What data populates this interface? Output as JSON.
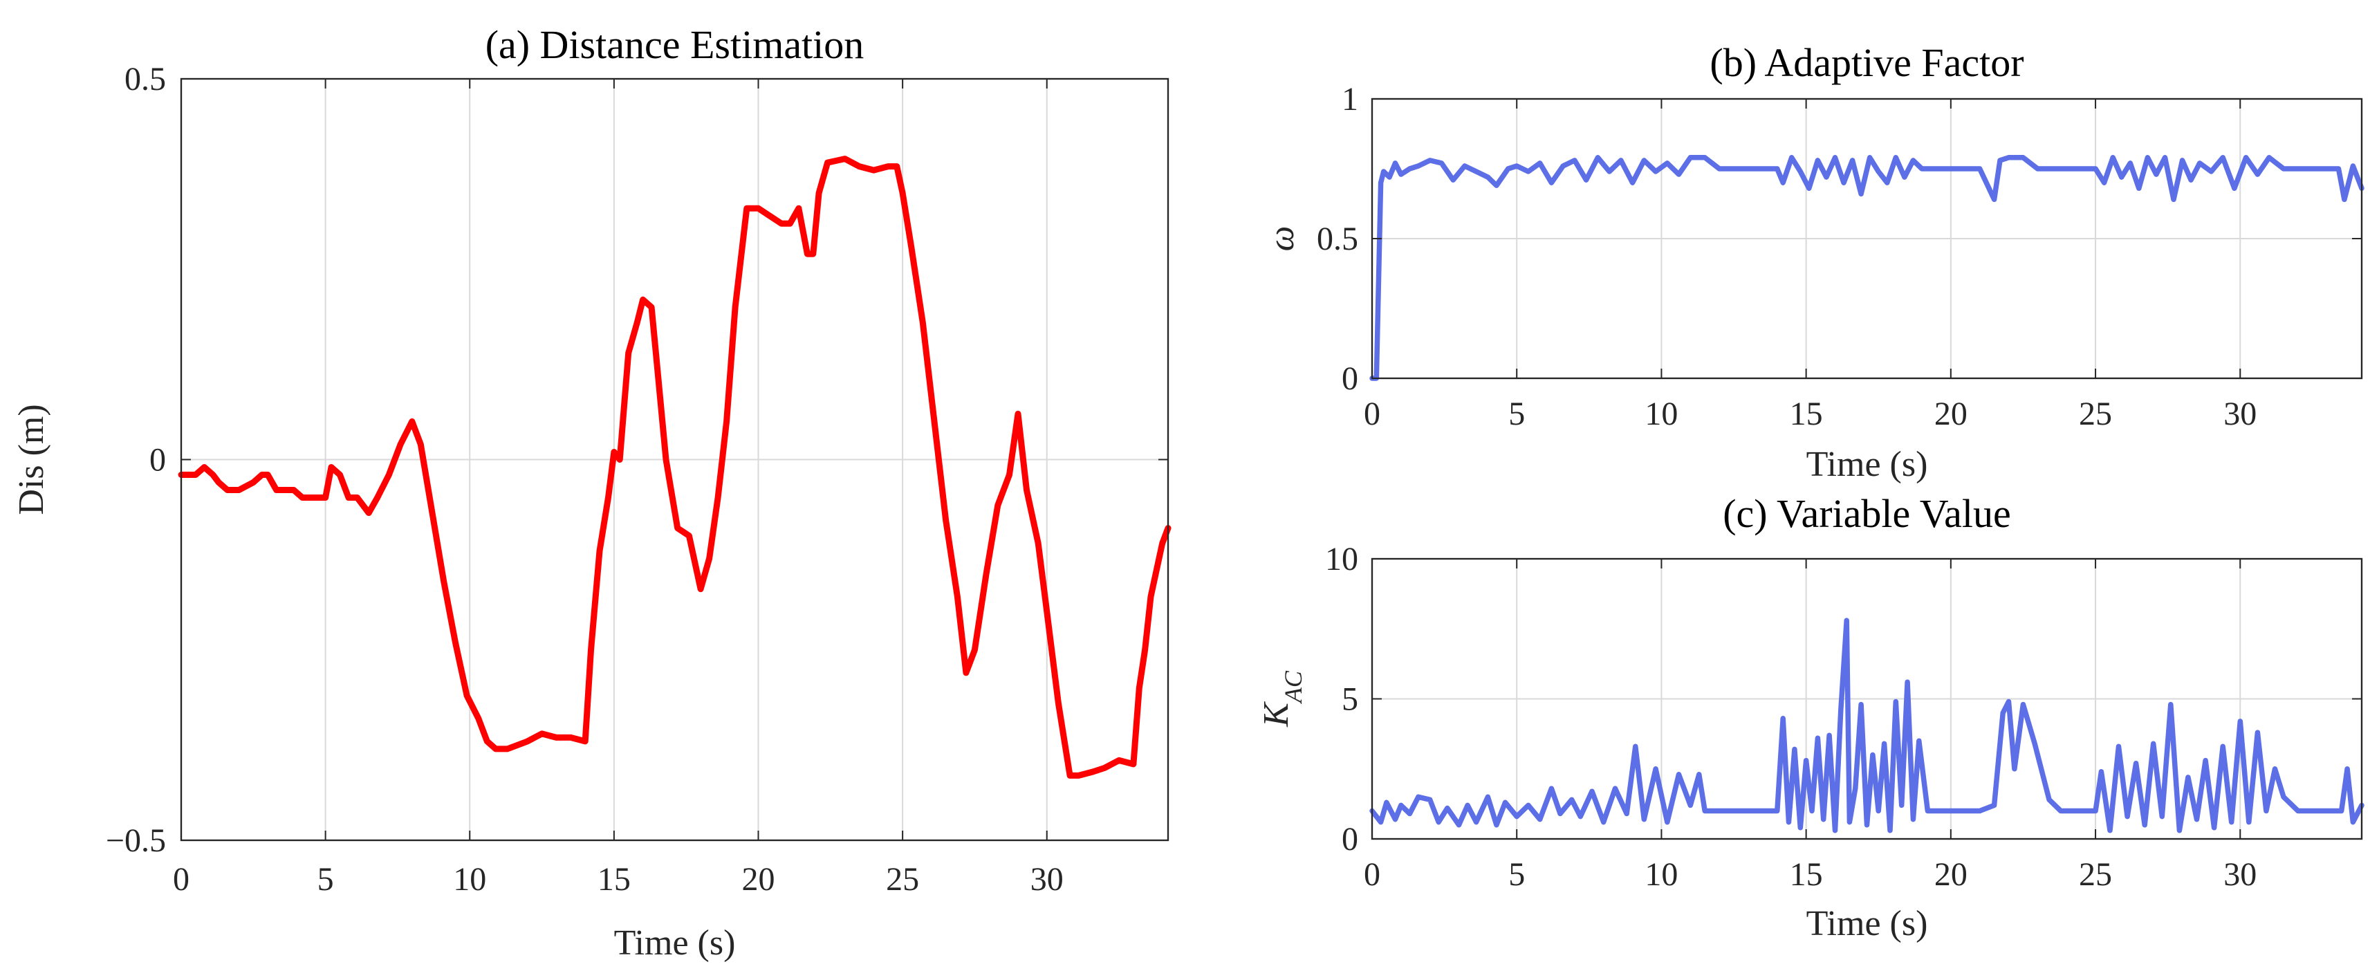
{
  "chart_data": [
    {
      "id": "a",
      "type": "line",
      "title": "(a) Distance Estimation",
      "xlabel": "Time (s)",
      "ylabel": "Dis (m)",
      "xlim": [
        0,
        34.2
      ],
      "ylim": [
        -0.5,
        0.5
      ],
      "xticks": [
        0,
        5,
        10,
        15,
        20,
        25,
        30
      ],
      "xtick_labels": [
        "0",
        "5",
        "10",
        "15",
        "20",
        "25",
        "30"
      ],
      "yticks": [
        -0.5,
        0,
        0.5
      ],
      "ytick_labels": [
        "−0.5",
        "0",
        "0.5"
      ],
      "grid": true,
      "series": [
        {
          "name": "Distance",
          "color": "#ff0000",
          "x": [
            0,
            0.5,
            0.8,
            1.1,
            1.3,
            1.6,
            2.0,
            2.5,
            2.8,
            3.0,
            3.3,
            3.6,
            3.9,
            4.2,
            4.6,
            5.0,
            5.2,
            5.5,
            5.8,
            6.1,
            6.5,
            6.8,
            7.2,
            7.6,
            8.0,
            8.3,
            8.7,
            9.1,
            9.5,
            9.9,
            10.3,
            10.6,
            10.9,
            11.3,
            12.0,
            12.5,
            13.0,
            13.5,
            14.0,
            14.2,
            14.5,
            14.8,
            15.0,
            15.2,
            15.5,
            15.8,
            16.0,
            16.3,
            16.5,
            16.8,
            17.2,
            17.6,
            18.0,
            18.3,
            18.6,
            18.9,
            19.2,
            19.6,
            20.0,
            20.4,
            20.8,
            21.1,
            21.4,
            21.7,
            21.9,
            22.1,
            22.4,
            23.0,
            23.5,
            24.0,
            24.5,
            24.8,
            25.0,
            25.3,
            25.7,
            26.1,
            26.5,
            26.9,
            27.2,
            27.5,
            27.9,
            28.3,
            28.7,
            29.0,
            29.3,
            29.7,
            30.0,
            30.4,
            30.8,
            31.1,
            31.6,
            32.0,
            32.5,
            33.0,
            33.2,
            33.4,
            33.6,
            34.0,
            34.2
          ],
          "y": [
            -0.02,
            -0.02,
            -0.01,
            -0.02,
            -0.03,
            -0.04,
            -0.04,
            -0.03,
            -0.02,
            -0.02,
            -0.04,
            -0.04,
            -0.04,
            -0.05,
            -0.05,
            -0.05,
            -0.01,
            -0.02,
            -0.05,
            -0.05,
            -0.07,
            -0.05,
            -0.02,
            0.02,
            0.05,
            0.02,
            -0.07,
            -0.16,
            -0.24,
            -0.31,
            -0.34,
            -0.37,
            -0.38,
            -0.38,
            -0.37,
            -0.36,
            -0.365,
            -0.365,
            -0.37,
            -0.25,
            -0.12,
            -0.05,
            0.01,
            0.0,
            0.14,
            0.18,
            0.21,
            0.2,
            0.12,
            0.0,
            -0.09,
            -0.1,
            -0.17,
            -0.13,
            -0.05,
            0.05,
            0.2,
            0.33,
            0.33,
            0.32,
            0.31,
            0.31,
            0.33,
            0.27,
            0.27,
            0.35,
            0.39,
            0.395,
            0.385,
            0.38,
            0.385,
            0.385,
            0.35,
            0.28,
            0.18,
            0.05,
            -0.08,
            -0.18,
            -0.28,
            -0.25,
            -0.15,
            -0.06,
            -0.02,
            0.06,
            -0.04,
            -0.11,
            -0.2,
            -0.32,
            -0.415,
            -0.415,
            -0.41,
            -0.405,
            -0.395,
            -0.4,
            -0.3,
            -0.25,
            -0.18,
            -0.11,
            -0.09
          ]
        }
      ]
    },
    {
      "id": "b",
      "type": "line",
      "title": "(b) Adaptive Factor",
      "xlabel": "Time (s)",
      "ylabel": "ω",
      "xlim": [
        0,
        34.2
      ],
      "ylim": [
        0,
        1
      ],
      "xticks": [
        0,
        5,
        10,
        15,
        20,
        25,
        30
      ],
      "xtick_labels": [
        "0",
        "5",
        "10",
        "15",
        "20",
        "25",
        "30"
      ],
      "yticks": [
        0,
        0.5,
        1
      ],
      "ytick_labels": [
        "0",
        "0.5",
        "1"
      ],
      "grid": true,
      "series": [
        {
          "name": "Adaptive factor",
          "color": "#5c6fe6",
          "x": [
            0,
            0.15,
            0.3,
            0.4,
            0.6,
            0.8,
            1.0,
            1.3,
            1.6,
            2.0,
            2.4,
            2.8,
            3.2,
            3.6,
            4.0,
            4.3,
            4.7,
            5.0,
            5.4,
            5.8,
            6.2,
            6.6,
            7.0,
            7.4,
            7.8,
            8.2,
            8.6,
            9.0,
            9.4,
            9.8,
            10.2,
            10.6,
            11.0,
            11.5,
            12.0,
            13.0,
            14.0,
            14.2,
            14.5,
            14.8,
            15.1,
            15.4,
            15.7,
            16.0,
            16.3,
            16.6,
            16.9,
            17.2,
            17.5,
            17.8,
            18.1,
            18.4,
            18.7,
            19.0,
            19.3,
            20.0,
            21.0,
            21.5,
            21.7,
            22.0,
            22.5,
            23.0,
            24.0,
            25.0,
            25.3,
            25.6,
            25.9,
            26.2,
            26.5,
            26.8,
            27.1,
            27.4,
            27.7,
            28.0,
            28.3,
            28.6,
            29.0,
            29.4,
            29.8,
            30.2,
            30.6,
            31.0,
            31.5,
            32.0,
            33.0,
            33.4,
            33.6,
            33.9,
            34.2
          ],
          "y": [
            0.0,
            0.0,
            0.7,
            0.74,
            0.72,
            0.77,
            0.73,
            0.75,
            0.76,
            0.78,
            0.77,
            0.71,
            0.76,
            0.74,
            0.72,
            0.69,
            0.75,
            0.76,
            0.74,
            0.77,
            0.7,
            0.76,
            0.78,
            0.71,
            0.79,
            0.74,
            0.78,
            0.7,
            0.78,
            0.74,
            0.77,
            0.73,
            0.79,
            0.79,
            0.75,
            0.75,
            0.75,
            0.7,
            0.79,
            0.74,
            0.68,
            0.78,
            0.72,
            0.79,
            0.7,
            0.78,
            0.66,
            0.79,
            0.74,
            0.7,
            0.79,
            0.72,
            0.78,
            0.75,
            0.75,
            0.75,
            0.75,
            0.64,
            0.78,
            0.79,
            0.79,
            0.75,
            0.75,
            0.75,
            0.7,
            0.79,
            0.72,
            0.77,
            0.68,
            0.79,
            0.73,
            0.79,
            0.64,
            0.78,
            0.71,
            0.77,
            0.74,
            0.79,
            0.68,
            0.79,
            0.73,
            0.79,
            0.75,
            0.75,
            0.75,
            0.75,
            0.64,
            0.76,
            0.68
          ]
        }
      ]
    },
    {
      "id": "c",
      "type": "line",
      "title": "(c) Variable Value",
      "xlabel": "Time (s)",
      "ylabel": "K",
      "ylabel_subscript": "AC",
      "xlim": [
        0,
        34.2
      ],
      "ylim": [
        0,
        10
      ],
      "xticks": [
        0,
        5,
        10,
        15,
        20,
        25,
        30
      ],
      "xtick_labels": [
        "0",
        "5",
        "10",
        "15",
        "20",
        "25",
        "30"
      ],
      "yticks": [
        0,
        5,
        10
      ],
      "ytick_labels": [
        "0",
        "5",
        "10"
      ],
      "grid": true,
      "series": [
        {
          "name": "Variable value",
          "color": "#5c6fe6",
          "x": [
            0,
            0.3,
            0.5,
            0.8,
            1.0,
            1.3,
            1.6,
            2.0,
            2.3,
            2.6,
            3.0,
            3.3,
            3.6,
            4.0,
            4.3,
            4.6,
            5.0,
            5.4,
            5.8,
            6.2,
            6.5,
            6.9,
            7.2,
            7.6,
            8.0,
            8.4,
            8.8,
            9.1,
            9.4,
            9.8,
            10.2,
            10.6,
            11.0,
            11.3,
            11.5,
            12.0,
            13.0,
            14.0,
            14.2,
            14.4,
            14.6,
            14.8,
            15.0,
            15.2,
            15.4,
            15.6,
            15.8,
            16.0,
            16.2,
            16.4,
            16.5,
            16.7,
            16.9,
            17.1,
            17.3,
            17.5,
            17.7,
            17.9,
            18.1,
            18.3,
            18.5,
            18.7,
            18.9,
            19.2,
            19.5,
            20.0,
            21.0,
            21.5,
            21.8,
            22.0,
            22.2,
            22.5,
            22.9,
            23.4,
            23.8,
            24.5,
            25.0,
            25.2,
            25.5,
            25.8,
            26.1,
            26.4,
            26.7,
            27.0,
            27.3,
            27.6,
            27.9,
            28.2,
            28.5,
            28.8,
            29.1,
            29.4,
            29.7,
            30.0,
            30.3,
            30.6,
            30.9,
            31.2,
            31.5,
            32.0,
            33.0,
            33.5,
            33.7,
            33.9,
            34.2
          ],
          "y": [
            1.0,
            0.6,
            1.3,
            0.7,
            1.2,
            0.9,
            1.5,
            1.4,
            0.6,
            1.1,
            0.5,
            1.2,
            0.6,
            1.5,
            0.5,
            1.3,
            0.8,
            1.2,
            0.7,
            1.8,
            0.9,
            1.4,
            0.8,
            1.7,
            0.6,
            1.8,
            0.9,
            3.3,
            0.7,
            2.5,
            0.6,
            2.3,
            1.2,
            2.3,
            1.0,
            1.0,
            1.0,
            1.0,
            4.3,
            0.6,
            3.2,
            0.4,
            2.8,
            1.0,
            3.6,
            0.7,
            3.7,
            0.3,
            4.6,
            7.8,
            0.6,
            1.8,
            4.8,
            0.5,
            3.0,
            1.0,
            3.4,
            0.3,
            4.9,
            1.2,
            5.6,
            0.7,
            3.5,
            1.0,
            1.0,
            1.0,
            1.0,
            1.2,
            4.5,
            4.9,
            2.5,
            4.8,
            3.4,
            1.4,
            1.0,
            1.0,
            1.0,
            2.4,
            0.3,
            3.3,
            0.8,
            2.7,
            0.5,
            3.4,
            0.8,
            4.8,
            0.3,
            2.2,
            0.7,
            2.8,
            0.4,
            3.3,
            0.6,
            4.2,
            0.6,
            3.8,
            1.0,
            2.5,
            1.5,
            1.0,
            1.0,
            1.0,
            2.5,
            0.6,
            1.2
          ]
        }
      ]
    }
  ]
}
